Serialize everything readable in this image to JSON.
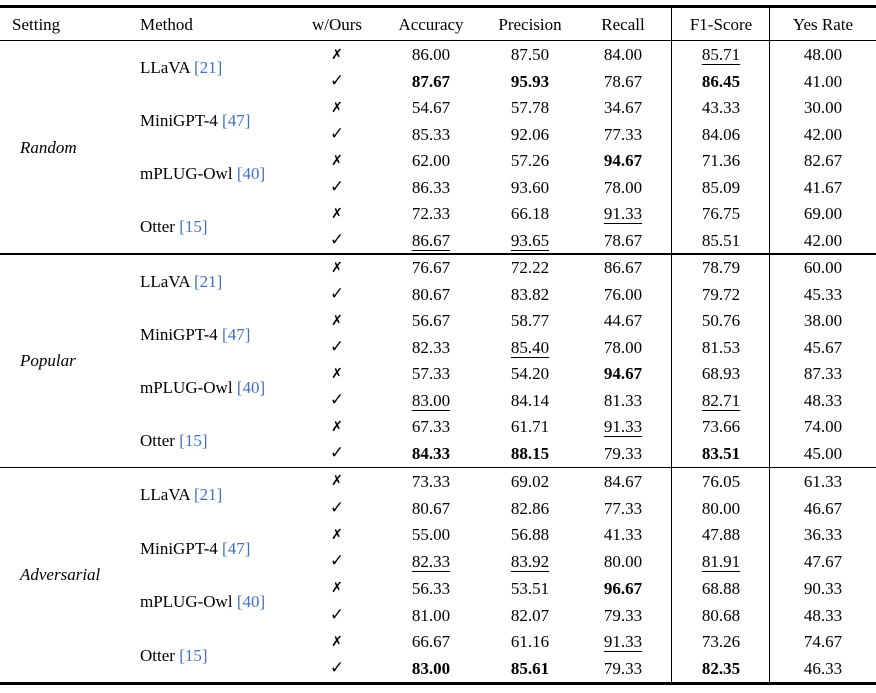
{
  "table": {
    "headers": [
      "Setting",
      "Method",
      "w/Ours",
      "Accuracy",
      "Precision",
      "Recall",
      "F1-Score",
      "Yes Rate"
    ],
    "symbols": {
      "without": "✗",
      "with": "✓"
    },
    "colors": {
      "citation": "#4170c4",
      "text": "#000000",
      "rule": "#000000"
    },
    "sections": [
      {
        "setting": "Random",
        "groups": [
          {
            "method": "LLaVA",
            "citation": "[21]",
            "rows": [
              {
                "ours": false,
                "values": [
                  {
                    "v": "86.00"
                  },
                  {
                    "v": "87.50"
                  },
                  {
                    "v": "84.00"
                  },
                  {
                    "v": "85.71",
                    "s": "u"
                  },
                  {
                    "v": "48.00"
                  }
                ]
              },
              {
                "ours": true,
                "values": [
                  {
                    "v": "87.67",
                    "s": "b"
                  },
                  {
                    "v": "95.93",
                    "s": "b"
                  },
                  {
                    "v": "78.67"
                  },
                  {
                    "v": "86.45",
                    "s": "b"
                  },
                  {
                    "v": "41.00"
                  }
                ]
              }
            ]
          },
          {
            "method": "MiniGPT-4",
            "citation": "[47]",
            "rows": [
              {
                "ours": false,
                "values": [
                  {
                    "v": "54.67"
                  },
                  {
                    "v": "57.78"
                  },
                  {
                    "v": "34.67"
                  },
                  {
                    "v": "43.33"
                  },
                  {
                    "v": "30.00"
                  }
                ]
              },
              {
                "ours": true,
                "values": [
                  {
                    "v": "85.33"
                  },
                  {
                    "v": "92.06"
                  },
                  {
                    "v": "77.33"
                  },
                  {
                    "v": "84.06"
                  },
                  {
                    "v": "42.00"
                  }
                ]
              }
            ]
          },
          {
            "method": "mPLUG-Owl",
            "citation": "[40]",
            "rows": [
              {
                "ours": false,
                "values": [
                  {
                    "v": "62.00"
                  },
                  {
                    "v": "57.26"
                  },
                  {
                    "v": "94.67",
                    "s": "b"
                  },
                  {
                    "v": "71.36"
                  },
                  {
                    "v": "82.67"
                  }
                ]
              },
              {
                "ours": true,
                "values": [
                  {
                    "v": "86.33"
                  },
                  {
                    "v": "93.60"
                  },
                  {
                    "v": "78.00"
                  },
                  {
                    "v": "85.09"
                  },
                  {
                    "v": "41.67"
                  }
                ]
              }
            ]
          },
          {
            "method": "Otter",
            "citation": "[15]",
            "rows": [
              {
                "ours": false,
                "values": [
                  {
                    "v": "72.33"
                  },
                  {
                    "v": "66.18"
                  },
                  {
                    "v": "91.33",
                    "s": "u"
                  },
                  {
                    "v": "76.75"
                  },
                  {
                    "v": "69.00"
                  }
                ]
              },
              {
                "ours": true,
                "values": [
                  {
                    "v": "86.67",
                    "s": "u"
                  },
                  {
                    "v": "93.65",
                    "s": "u"
                  },
                  {
                    "v": "78.67"
                  },
                  {
                    "v": "85.51"
                  },
                  {
                    "v": "42.00"
                  }
                ]
              }
            ]
          }
        ]
      },
      {
        "setting": "Popular",
        "groups": [
          {
            "method": "LLaVA",
            "citation": "[21]",
            "rows": [
              {
                "ours": false,
                "values": [
                  {
                    "v": "76.67"
                  },
                  {
                    "v": "72.22"
                  },
                  {
                    "v": "86.67"
                  },
                  {
                    "v": "78.79"
                  },
                  {
                    "v": "60.00"
                  }
                ]
              },
              {
                "ours": true,
                "values": [
                  {
                    "v": "80.67"
                  },
                  {
                    "v": "83.82"
                  },
                  {
                    "v": "76.00"
                  },
                  {
                    "v": "79.72"
                  },
                  {
                    "v": "45.33"
                  }
                ]
              }
            ]
          },
          {
            "method": "MiniGPT-4",
            "citation": "[47]",
            "rows": [
              {
                "ours": false,
                "values": [
                  {
                    "v": "56.67"
                  },
                  {
                    "v": "58.77"
                  },
                  {
                    "v": "44.67"
                  },
                  {
                    "v": "50.76"
                  },
                  {
                    "v": "38.00"
                  }
                ]
              },
              {
                "ours": true,
                "values": [
                  {
                    "v": "82.33"
                  },
                  {
                    "v": "85.40",
                    "s": "u"
                  },
                  {
                    "v": "78.00"
                  },
                  {
                    "v": "81.53"
                  },
                  {
                    "v": "45.67"
                  }
                ]
              }
            ]
          },
          {
            "method": "mPLUG-Owl",
            "citation": "[40]",
            "rows": [
              {
                "ours": false,
                "values": [
                  {
                    "v": "57.33"
                  },
                  {
                    "v": "54.20"
                  },
                  {
                    "v": "94.67",
                    "s": "b"
                  },
                  {
                    "v": "68.93"
                  },
                  {
                    "v": "87.33"
                  }
                ]
              },
              {
                "ours": true,
                "values": [
                  {
                    "v": "83.00",
                    "s": "u"
                  },
                  {
                    "v": "84.14"
                  },
                  {
                    "v": "81.33"
                  },
                  {
                    "v": "82.71",
                    "s": "u"
                  },
                  {
                    "v": "48.33"
                  }
                ]
              }
            ]
          },
          {
            "method": "Otter",
            "citation": "[15]",
            "rows": [
              {
                "ours": false,
                "values": [
                  {
                    "v": "67.33"
                  },
                  {
                    "v": "61.71"
                  },
                  {
                    "v": "91.33",
                    "s": "u"
                  },
                  {
                    "v": "73.66"
                  },
                  {
                    "v": "74.00"
                  }
                ]
              },
              {
                "ours": true,
                "values": [
                  {
                    "v": "84.33",
                    "s": "b"
                  },
                  {
                    "v": "88.15",
                    "s": "b"
                  },
                  {
                    "v": "79.33"
                  },
                  {
                    "v": "83.51",
                    "s": "b"
                  },
                  {
                    "v": "45.00"
                  }
                ]
              }
            ]
          }
        ]
      },
      {
        "setting": "Adversarial",
        "groups": [
          {
            "method": "LLaVA",
            "citation": "[21]",
            "rows": [
              {
                "ours": false,
                "values": [
                  {
                    "v": "73.33"
                  },
                  {
                    "v": "69.02"
                  },
                  {
                    "v": "84.67"
                  },
                  {
                    "v": "76.05"
                  },
                  {
                    "v": "61.33"
                  }
                ]
              },
              {
                "ours": true,
                "values": [
                  {
                    "v": "80.67"
                  },
                  {
                    "v": "82.86"
                  },
                  {
                    "v": "77.33"
                  },
                  {
                    "v": "80.00"
                  },
                  {
                    "v": "46.67"
                  }
                ]
              }
            ]
          },
          {
            "method": "MiniGPT-4",
            "citation": "[47]",
            "rows": [
              {
                "ours": false,
                "values": [
                  {
                    "v": "55.00"
                  },
                  {
                    "v": "56.88"
                  },
                  {
                    "v": "41.33"
                  },
                  {
                    "v": "47.88"
                  },
                  {
                    "v": "36.33"
                  }
                ]
              },
              {
                "ours": true,
                "values": [
                  {
                    "v": "82.33",
                    "s": "u"
                  },
                  {
                    "v": "83.92",
                    "s": "u"
                  },
                  {
                    "v": "80.00"
                  },
                  {
                    "v": "81.91",
                    "s": "u"
                  },
                  {
                    "v": "47.67"
                  }
                ]
              }
            ]
          },
          {
            "method": "mPLUG-Owl",
            "citation": "[40]",
            "rows": [
              {
                "ours": false,
                "values": [
                  {
                    "v": "56.33"
                  },
                  {
                    "v": "53.51"
                  },
                  {
                    "v": "96.67",
                    "s": "b"
                  },
                  {
                    "v": "68.88"
                  },
                  {
                    "v": "90.33"
                  }
                ]
              },
              {
                "ours": true,
                "values": [
                  {
                    "v": "81.00"
                  },
                  {
                    "v": "82.07"
                  },
                  {
                    "v": "79.33"
                  },
                  {
                    "v": "80.68"
                  },
                  {
                    "v": "48.33"
                  }
                ]
              }
            ]
          },
          {
            "method": "Otter",
            "citation": "[15]",
            "rows": [
              {
                "ours": false,
                "values": [
                  {
                    "v": "66.67"
                  },
                  {
                    "v": "61.16"
                  },
                  {
                    "v": "91.33",
                    "s": "u"
                  },
                  {
                    "v": "73.26"
                  },
                  {
                    "v": "74.67"
                  }
                ]
              },
              {
                "ours": true,
                "values": [
                  {
                    "v": "83.00",
                    "s": "b"
                  },
                  {
                    "v": "85.61",
                    "s": "b"
                  },
                  {
                    "v": "79.33"
                  },
                  {
                    "v": "82.35",
                    "s": "b"
                  },
                  {
                    "v": "46.33"
                  }
                ]
              }
            ]
          }
        ]
      }
    ]
  }
}
